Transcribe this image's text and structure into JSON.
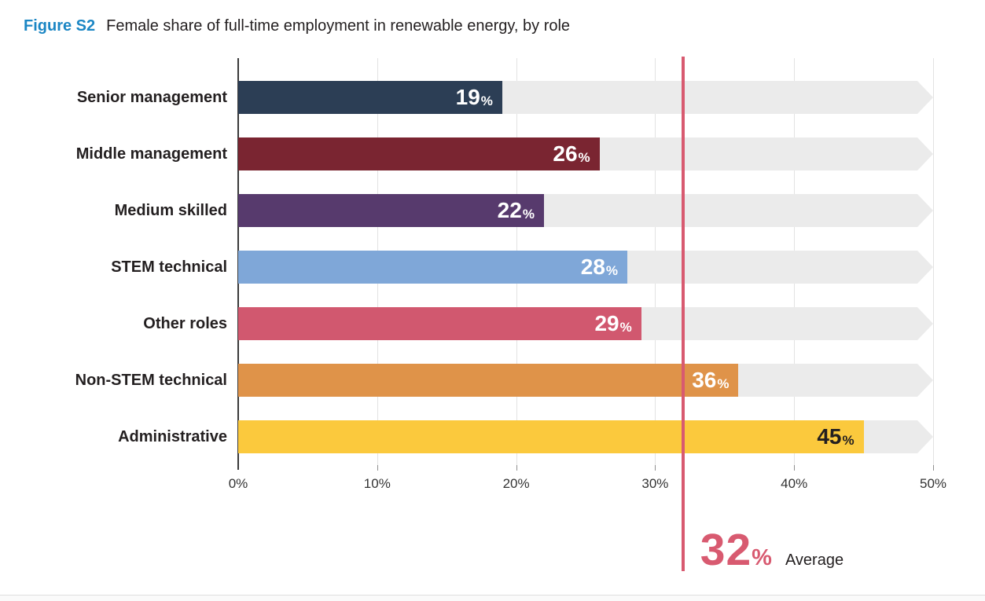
{
  "figure": {
    "label": "Figure S2",
    "title": "Female share of full-time employment in renewable energy, by role"
  },
  "colors": {
    "figure_label": "#1b86c4",
    "text": "#231f20",
    "track": "#ebebeb",
    "gridline": "#e3e3e3",
    "axis": "#3a3a3a",
    "average": "#d85a70"
  },
  "chart_data": {
    "type": "bar",
    "orientation": "horizontal",
    "title": "Female share of full-time employment in renewable energy, by role",
    "categories": [
      "Senior management",
      "Middle management",
      "Medium skilled",
      "STEM technical",
      "Other roles",
      "Non-STEM technical",
      "Administrative"
    ],
    "values": [
      19,
      26,
      22,
      28,
      29,
      36,
      45
    ],
    "value_suffix": "%",
    "bar_colors": [
      "#2c3e55",
      "#7a2531",
      "#573a6d",
      "#7fa7d8",
      "#d1586f",
      "#df9349",
      "#fbc93d"
    ],
    "value_label_colors": [
      "#ffffff",
      "#ffffff",
      "#ffffff",
      "#ffffff",
      "#ffffff",
      "#ffffff",
      "#231f20"
    ],
    "x_ticks": [
      "0%",
      "10%",
      "20%",
      "30%",
      "40%",
      "50%"
    ],
    "xlim": [
      0,
      50
    ],
    "grid": true,
    "legend": null,
    "average_line": {
      "value": 32,
      "display": "32",
      "suffix": "%",
      "caption": "Average"
    }
  }
}
